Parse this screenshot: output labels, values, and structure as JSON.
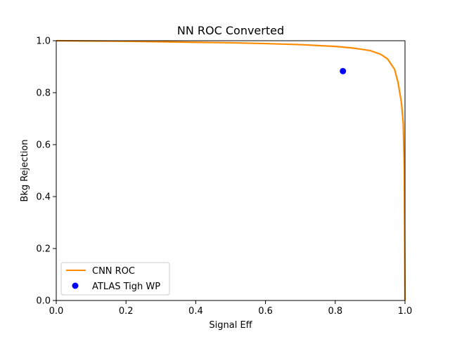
{
  "chart_data": {
    "type": "line",
    "title": "NN ROC Converted",
    "xlabel": "Signal Eff",
    "ylabel": "Bkg Rejection",
    "xlim": [
      0,
      1
    ],
    "ylim": [
      0,
      1
    ],
    "xticks": [
      "0.0",
      "0.2",
      "0.4",
      "0.6",
      "0.8",
      "1.0"
    ],
    "yticks": [
      "0.0",
      "0.2",
      "0.4",
      "0.6",
      "0.8",
      "1.0"
    ],
    "grid": false,
    "legend_position": "lower-left",
    "series": [
      {
        "name": "CNN ROC",
        "kind": "line",
        "color": "#ff8c00",
        "x": [
          0.0,
          0.1,
          0.2,
          0.3,
          0.4,
          0.5,
          0.6,
          0.7,
          0.8,
          0.85,
          0.9,
          0.93,
          0.95,
          0.97,
          0.98,
          0.99,
          0.995,
          0.998,
          0.999,
          1.0
        ],
        "y": [
          1.0,
          0.999,
          0.998,
          0.996,
          0.994,
          0.992,
          0.989,
          0.985,
          0.978,
          0.972,
          0.962,
          0.948,
          0.93,
          0.89,
          0.84,
          0.76,
          0.68,
          0.5,
          0.25,
          0.0
        ]
      },
      {
        "name": "ATLAS Tigh WP",
        "kind": "scatter",
        "color": "#0000ff",
        "x": [
          0.822
        ],
        "y": [
          0.883
        ]
      }
    ]
  }
}
